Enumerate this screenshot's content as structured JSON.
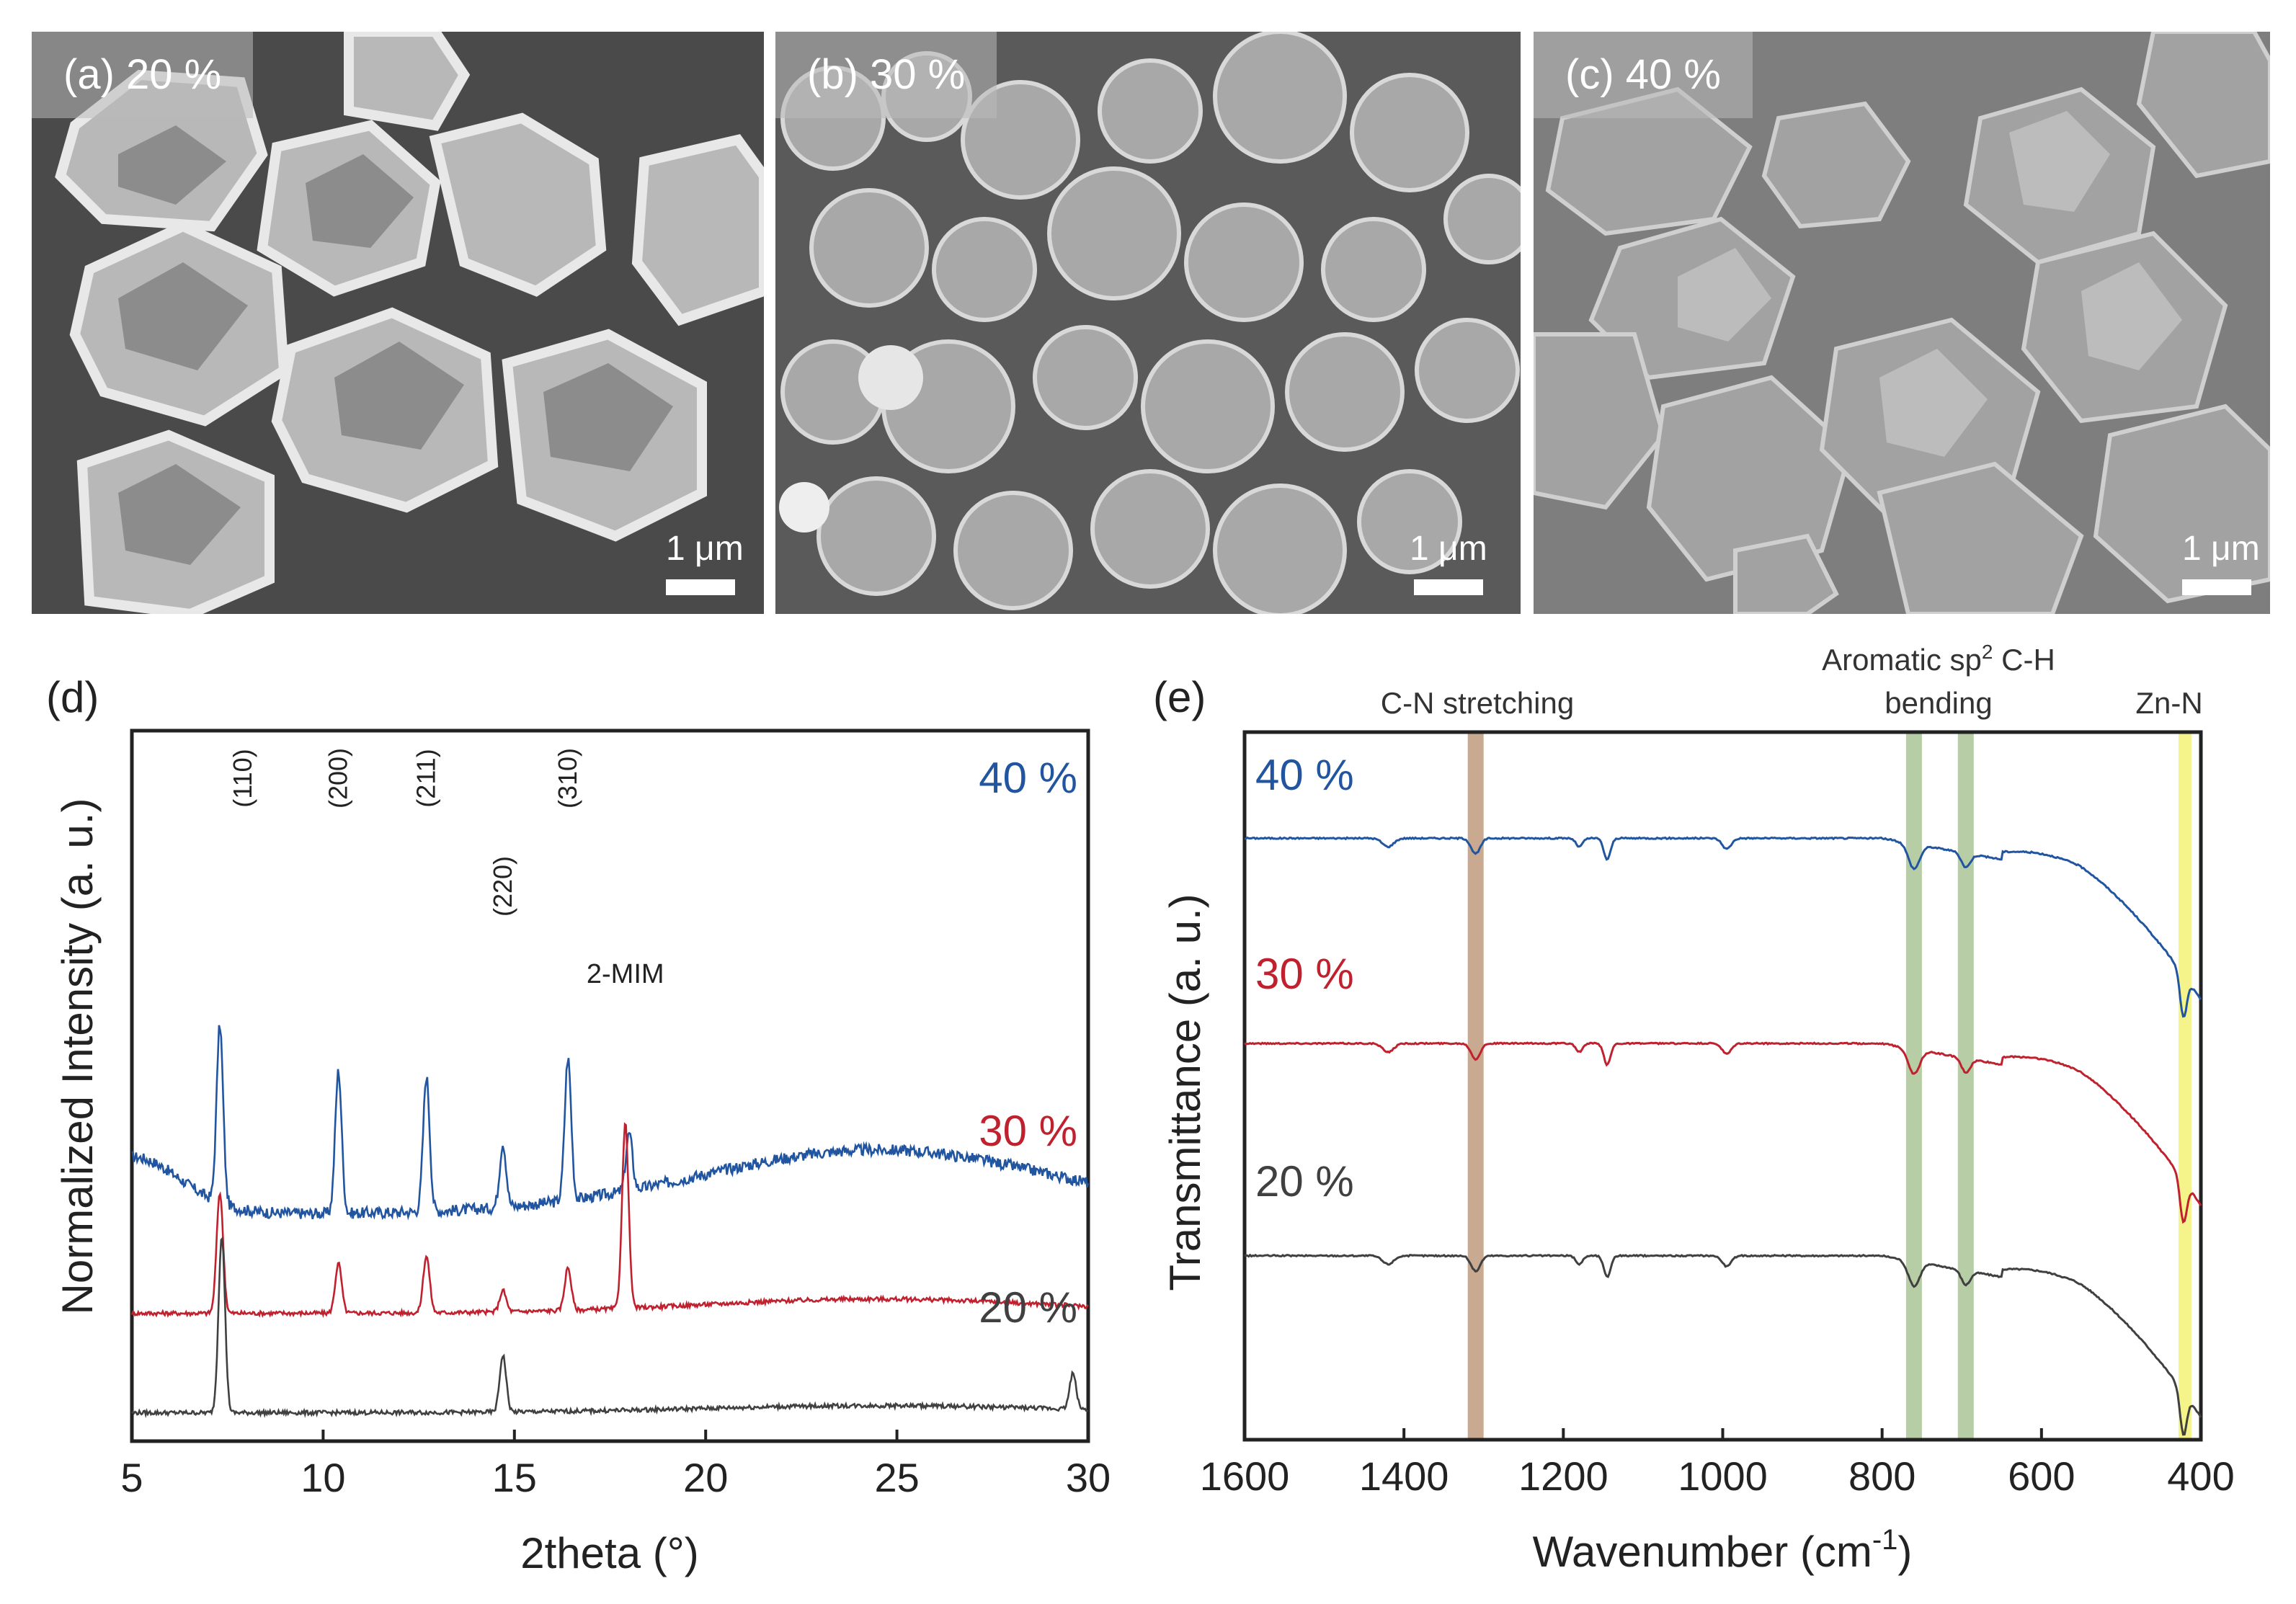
{
  "sem_panels": [
    {
      "label": "(a) 20 %",
      "scale": "1 μm"
    },
    {
      "label": "(b) 30 %",
      "scale": "1 μm"
    },
    {
      "label": "(c) 40 %",
      "scale": "1 μm"
    }
  ],
  "chart_data": [
    {
      "panel": "(d)",
      "type": "line",
      "xlabel": "2theta (°)",
      "ylabel": "Normalized Intensity (a. u.)",
      "xlim": [
        5,
        30
      ],
      "xticks": [
        "5",
        "10",
        "15",
        "20",
        "25",
        "30"
      ],
      "series": [
        {
          "name": "40 %",
          "color": "#2255a0",
          "baseline": 0.32,
          "hump": 0.09,
          "peaks": [
            {
              "x": 7.3,
              "h": 0.25
            },
            {
              "x": 10.4,
              "h": 0.2
            },
            {
              "x": 12.7,
              "h": 0.19
            },
            {
              "x": 14.7,
              "h": 0.09
            },
            {
              "x": 16.4,
              "h": 0.2
            },
            {
              "x": 18.0,
              "h": 0.08
            }
          ]
        },
        {
          "name": "30 %",
          "color": "#c0212f",
          "baseline": 0.18,
          "hump": 0.02,
          "peaks": [
            {
              "x": 7.3,
              "h": 0.17
            },
            {
              "x": 10.4,
              "h": 0.07
            },
            {
              "x": 12.7,
              "h": 0.08
            },
            {
              "x": 14.7,
              "h": 0.03
            },
            {
              "x": 16.4,
              "h": 0.06
            },
            {
              "x": 17.9,
              "h": 0.26
            }
          ]
        },
        {
          "name": "20 %",
          "color": "#404040",
          "baseline": 0.04,
          "hump": 0.01,
          "peaks": [
            {
              "x": 7.35,
              "h": 0.25
            },
            {
              "x": 14.7,
              "h": 0.08
            },
            {
              "x": 29.6,
              "h": 0.05
            }
          ]
        }
      ],
      "annotations": [
        {
          "text": "(110)",
          "x": 7.9
        },
        {
          "text": "(200)",
          "x": 10.4
        },
        {
          "text": "(211)",
          "x": 12.7
        },
        {
          "text": "(220)",
          "x": 14.7
        },
        {
          "text": "(310)",
          "x": 16.4
        },
        {
          "text": "2-MIM",
          "x": 17.9
        }
      ]
    },
    {
      "panel": "(e)",
      "type": "line",
      "xlabel": "Wavenumber (cm⁻¹)",
      "ylabel": "Transmittance (a. u.)",
      "xlim": [
        1600,
        400
      ],
      "xticks": [
        "1600",
        "1400",
        "1200",
        "1000",
        "800",
        "600",
        "400"
      ],
      "bands": [
        {
          "label": "C-N stretching",
          "x": 1310,
          "color": "#c9a98f"
        },
        {
          "label": "Aromatic sp² C-H bending",
          "x": 760,
          "color": "#b6cda6"
        },
        {
          "label": "",
          "x": 695,
          "color": "#b6cda6"
        },
        {
          "label": "Zn-N",
          "x": 420,
          "color": "#f4f48a"
        }
      ],
      "series": [
        {
          "name": "40 %",
          "color": "#2255a0",
          "offset": 0.85
        },
        {
          "name": "30 %",
          "color": "#c0212f",
          "offset": 0.56
        },
        {
          "name": "20 %",
          "color": "#404040",
          "offset": 0.26
        }
      ]
    }
  ],
  "text": {
    "d_panel": "(d)",
    "e_panel": "(e)",
    "cn_label": "C-N stretching",
    "arom_line1": "Aromatic sp",
    "arom_sup": "2",
    "arom_tail": " C-H",
    "arom_line2": "bending",
    "znn_label": "Zn-N",
    "d_xlabel": "2theta (°)",
    "d_ylabel": "Normalized Intensity (a. u.)",
    "e_xlabel_main": "Wavenumber (cm",
    "e_xlabel_sup": "-1",
    "e_xlabel_tail": ")",
    "e_ylabel": "Transmittance (a. u.)"
  }
}
